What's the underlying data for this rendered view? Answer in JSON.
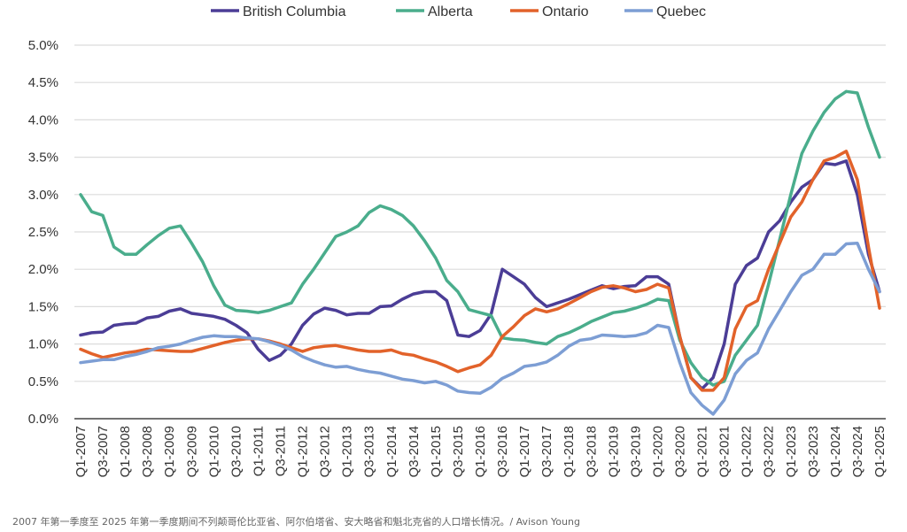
{
  "chart_data": {
    "type": "line",
    "title": "",
    "xlabel": "",
    "ylabel": "",
    "ylim": [
      0,
      5
    ],
    "yticks": [
      "0.0%",
      "0.5%",
      "1.0%",
      "1.5%",
      "2.0%",
      "2.5%",
      "3.0%",
      "3.5%",
      "4.0%",
      "4.5%",
      "5.0%"
    ],
    "grid": true,
    "legend_position": "top-center",
    "x_start": "Q1-2007",
    "x_end": "Q1-2025",
    "xtick_labels": [
      "Q1-2007",
      "Q3-2007",
      "Q1-2008",
      "Q3-2008",
      "Q1-2009",
      "Q3-2009",
      "Q1-2010",
      "Q3-2010",
      "Q1-2011",
      "Q3-2011",
      "Q1-2012",
      "Q3-2012",
      "Q1-2013",
      "Q3-2013",
      "Q1-2014",
      "Q3-2014",
      "Q1-2015",
      "Q3-2015",
      "Q1-2016",
      "Q3-2016",
      "Q1-2017",
      "Q3-2017",
      "Q1-2018",
      "Q3-2018",
      "Q1-2019",
      "Q3-2019",
      "Q1-2020",
      "Q3-2020",
      "Q1-2021",
      "Q3-2021",
      "Q1-2022",
      "Q3-2022",
      "Q1-2023",
      "Q3-2023",
      "Q1-2024",
      "Q3-2024",
      "Q1-2025"
    ],
    "series": [
      {
        "name": "British Columbia",
        "color": "#4b3d96",
        "values": [
          1.12,
          1.15,
          1.16,
          1.25,
          1.27,
          1.28,
          1.35,
          1.37,
          1.44,
          1.47,
          1.41,
          1.39,
          1.37,
          1.33,
          1.25,
          1.15,
          0.93,
          0.78,
          0.85,
          1.0,
          1.25,
          1.4,
          1.48,
          1.45,
          1.39,
          1.41,
          1.41,
          1.5,
          1.51,
          1.6,
          1.67,
          1.7,
          1.7,
          1.58,
          1.12,
          1.1,
          1.18,
          1.4,
          2.0,
          1.9,
          1.8,
          1.62,
          1.5,
          1.55,
          1.6,
          1.66,
          1.72,
          1.78,
          1.74,
          1.77,
          1.78,
          1.9,
          1.9,
          1.8,
          1.1,
          0.55,
          0.4,
          0.55,
          1.0,
          1.8,
          2.05,
          2.15,
          2.5,
          2.65,
          2.9,
          3.1,
          3.2,
          3.42,
          3.4,
          3.45,
          3.0,
          2.2,
          1.7
        ]
      },
      {
        "name": "Alberta",
        "color": "#4aad8c",
        "values": [
          3.0,
          2.77,
          2.72,
          2.3,
          2.2,
          2.2,
          2.33,
          2.45,
          2.55,
          2.58,
          2.35,
          2.1,
          1.78,
          1.52,
          1.45,
          1.44,
          1.42,
          1.45,
          1.5,
          1.55,
          1.8,
          2.0,
          2.22,
          2.44,
          2.5,
          2.58,
          2.76,
          2.85,
          2.8,
          2.72,
          2.58,
          2.38,
          2.15,
          1.85,
          1.7,
          1.46,
          1.42,
          1.38,
          1.08,
          1.06,
          1.05,
          1.02,
          1.0,
          1.1,
          1.15,
          1.22,
          1.3,
          1.36,
          1.42,
          1.44,
          1.48,
          1.53,
          1.6,
          1.58,
          1.05,
          0.75,
          0.55,
          0.45,
          0.5,
          0.85,
          1.05,
          1.25,
          1.8,
          2.4,
          3.0,
          3.55,
          3.85,
          4.1,
          4.28,
          4.38,
          4.36,
          3.9,
          3.5
        ]
      },
      {
        "name": "Ontario",
        "color": "#e2622a",
        "values": [
          0.93,
          0.87,
          0.82,
          0.85,
          0.88,
          0.9,
          0.93,
          0.92,
          0.91,
          0.9,
          0.9,
          0.94,
          0.98,
          1.02,
          1.05,
          1.07,
          1.07,
          1.04,
          1.0,
          0.95,
          0.9,
          0.95,
          0.97,
          0.98,
          0.95,
          0.92,
          0.9,
          0.9,
          0.92,
          0.87,
          0.85,
          0.8,
          0.76,
          0.7,
          0.63,
          0.68,
          0.72,
          0.85,
          1.1,
          1.23,
          1.38,
          1.47,
          1.43,
          1.47,
          1.54,
          1.62,
          1.7,
          1.76,
          1.78,
          1.75,
          1.7,
          1.73,
          1.8,
          1.75,
          1.1,
          0.55,
          0.38,
          0.38,
          0.55,
          1.2,
          1.5,
          1.58,
          2.0,
          2.35,
          2.7,
          2.9,
          3.2,
          3.45,
          3.5,
          3.58,
          3.2,
          2.3,
          1.48
        ]
      },
      {
        "name": "Quebec",
        "color": "#7d9ed4",
        "values": [
          0.75,
          0.77,
          0.79,
          0.79,
          0.83,
          0.86,
          0.9,
          0.95,
          0.97,
          1.0,
          1.05,
          1.09,
          1.11,
          1.1,
          1.1,
          1.08,
          1.07,
          1.03,
          0.98,
          0.92,
          0.83,
          0.77,
          0.72,
          0.69,
          0.7,
          0.66,
          0.63,
          0.61,
          0.57,
          0.53,
          0.51,
          0.48,
          0.5,
          0.45,
          0.37,
          0.35,
          0.34,
          0.42,
          0.54,
          0.61,
          0.7,
          0.72,
          0.76,
          0.85,
          0.97,
          1.05,
          1.07,
          1.12,
          1.11,
          1.1,
          1.11,
          1.15,
          1.25,
          1.22,
          0.75,
          0.35,
          0.18,
          0.06,
          0.25,
          0.6,
          0.78,
          0.88,
          1.2,
          1.45,
          1.7,
          1.92,
          2.0,
          2.2,
          2.2,
          2.34,
          2.35,
          2.0,
          1.7
        ]
      }
    ]
  },
  "caption": "2007 年第一季度至 2025 年第一季度期间不列颠哥伦比亚省、阿尔伯塔省、安大略省和魁北克省的人口增长情况。/ Avison Young"
}
